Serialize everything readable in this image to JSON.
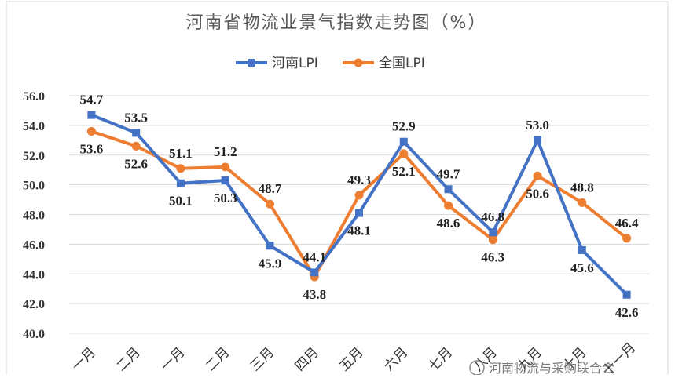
{
  "chart_data": {
    "type": "line",
    "title": "河南省物流业景气指数走势图（%）",
    "ylim": [
      40.0,
      56.0
    ],
    "yticks": [
      "56.0",
      "54.0",
      "52.0",
      "50.0",
      "48.0",
      "46.0",
      "44.0",
      "42.0",
      "40.0"
    ],
    "categories": [
      "一月",
      "二月",
      "一月",
      "二月",
      "三月",
      "四月",
      "五月",
      "六月",
      "七月",
      "八月",
      "九月",
      "十月",
      "十一月"
    ],
    "series": [
      {
        "name": "河南LPI",
        "color": "#4472C4",
        "marker": "square",
        "values": [
          54.7,
          53.5,
          50.1,
          50.3,
          45.9,
          44.1,
          48.1,
          52.9,
          49.7,
          46.8,
          53.0,
          45.6,
          42.6
        ],
        "labels": [
          "54.7",
          "53.5",
          "50.1",
          "50.3",
          "45.9",
          "44.1",
          "48.1",
          "52.9",
          "49.7",
          "46.8",
          "53.0",
          "45.6",
          "42.6"
        ]
      },
      {
        "name": "全国LPI",
        "color": "#ED7D31",
        "marker": "circle",
        "values": [
          53.6,
          52.6,
          51.1,
          51.2,
          48.7,
          43.8,
          49.3,
          52.1,
          48.6,
          46.3,
          50.6,
          48.8,
          46.4
        ],
        "labels": [
          "53.6",
          "52.6",
          "51.1",
          "51.2",
          "48.7",
          "43.8",
          "49.3",
          "52.1",
          "48.6",
          "46.3",
          "50.6",
          "48.8",
          "46.4"
        ]
      }
    ],
    "grid": true,
    "legend": "top-center"
  },
  "watermark": {
    "text": "河南物流与采购联合会",
    "icon": "wechat-icon"
  }
}
